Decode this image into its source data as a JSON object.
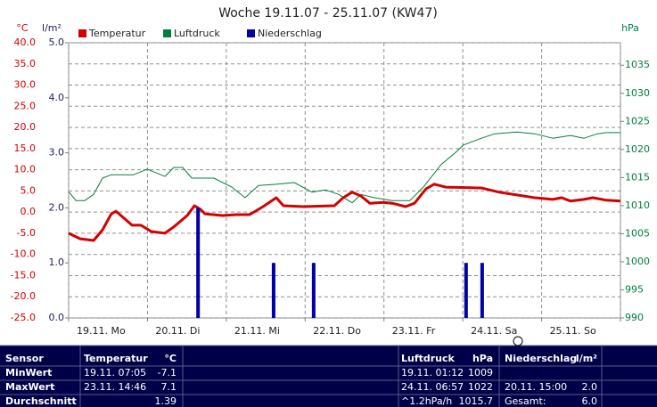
{
  "chart_data": {
    "type": "line",
    "title": "Woche 19.11.07 - 25.11.07 (KW47)",
    "y_label": "°C",
    "y3_label": "l/m²",
    "y2_label": "hPa",
    "xlim": [
      0,
      168
    ],
    "xticks": [
      {
        "value": 0,
        "label": "19.11. Mo"
      },
      {
        "value": 24,
        "label": "20.11. Di"
      },
      {
        "value": 48,
        "label": "21.11. Mi"
      },
      {
        "value": 72,
        "label": "22.11. Do"
      },
      {
        "value": 96,
        "label": "23.11. Fr"
      },
      {
        "value": 120,
        "label": "24.11. Sa"
      },
      {
        "value": 144,
        "label": "25.11. So"
      },
      {
        "value": 168,
        "label": null
      }
    ],
    "ylim": [
      -25,
      40
    ],
    "yticks": [
      {
        "value": 40,
        "label": "40.0"
      },
      {
        "value": 35,
        "label": "35.0"
      },
      {
        "value": 30,
        "label": "30.0"
      },
      {
        "value": 25,
        "label": "25.0"
      },
      {
        "value": 20,
        "label": "20.0"
      },
      {
        "value": 15,
        "label": "15.0"
      },
      {
        "value": 10,
        "label": "10.0"
      },
      {
        "value": 5,
        "label": "5.0"
      },
      {
        "value": 0,
        "label": "0.0"
      },
      {
        "value": -5,
        "label": "-5.0"
      },
      {
        "value": -10,
        "label": "-10.0"
      },
      {
        "value": -15,
        "label": "-15.0"
      },
      {
        "value": -20,
        "label": "-20.0"
      },
      {
        "value": -25,
        "label": "-25.0"
      }
    ],
    "y3lim": [
      0,
      5
    ],
    "y3ticks": [
      {
        "value": 0,
        "label": "0.0"
      },
      {
        "value": 1,
        "label": "1.0"
      },
      {
        "value": 2,
        "label": "2.0"
      },
      {
        "value": 3,
        "label": "3.0"
      },
      {
        "value": 4,
        "label": "4.0"
      },
      {
        "value": 5,
        "label": "5.0"
      }
    ],
    "y2lim": [
      990,
      1039
    ],
    "y2ticks": [
      990,
      995,
      1000,
      1005,
      1010,
      1015,
      1020,
      1025,
      1030,
      1035
    ],
    "grid": true,
    "series": [
      {
        "name": "Temperatur",
        "color": "#d40000",
        "x": [
          0,
          3.5,
          7.6,
          10.3,
          13,
          14.4,
          17.1,
          19.3,
          22,
          25.2,
          29.3,
          32,
          36.1,
          38.3,
          40.2,
          41.5,
          46.9,
          51,
          55.1,
          59.2,
          63.2,
          65.4,
          71.4,
          80.9,
          83.6,
          86.3,
          89,
          91.7,
          95.8,
          98.5,
          102.6,
          105.3,
          108.8,
          111.3,
          114.8,
          125.7,
          131.1,
          141.9,
          147.4,
          150.1,
          152.8,
          156.9,
          159.6,
          163.7,
          168
        ],
        "values": [
          -5.0,
          -6.3,
          -6.7,
          -4.2,
          -0.4,
          0.2,
          -1.6,
          -3.1,
          -3.1,
          -4.6,
          -5.0,
          -3.5,
          -0.8,
          1.5,
          0.6,
          -0.4,
          -0.8,
          -0.6,
          -0.6,
          1.3,
          3.4,
          1.5,
          1.3,
          1.5,
          3.4,
          4.7,
          3.8,
          2.1,
          2.3,
          2.1,
          1.3,
          2.1,
          5.5,
          6.6,
          5.9,
          5.7,
          4.7,
          3.4,
          3.0,
          3.4,
          2.6,
          3.0,
          3.4,
          2.8,
          2.6
        ]
      },
      {
        "name": "Luftdruck",
        "color": "#008040",
        "axis": "y2",
        "x": [
          0,
          2.2,
          4.9,
          7.6,
          10.3,
          13,
          19.8,
          23.9,
          29.3,
          32,
          34.7,
          37.5,
          44.2,
          49.7,
          53.7,
          57.8,
          63.2,
          68.7,
          74.1,
          78.2,
          82.2,
          86.3,
          89,
          93.1,
          98.5,
          103.9,
          108,
          113.4,
          117.5,
          120.2,
          125.7,
          129.7,
          136.5,
          141.9,
          147.4,
          152.8,
          156.9,
          161,
          163.7,
          168
        ],
        "values": [
          1012.5,
          1010.9,
          1010.9,
          1012,
          1014.9,
          1015.5,
          1015.5,
          1016.5,
          1015.2,
          1016.8,
          1016.8,
          1014.9,
          1014.9,
          1013.3,
          1011.4,
          1013.6,
          1013.8,
          1014.1,
          1012.4,
          1012.8,
          1012,
          1010.5,
          1012,
          1011.4,
          1010.9,
          1010.9,
          1013.3,
          1017.3,
          1019.3,
          1020.8,
          1022,
          1022.8,
          1023.1,
          1022.8,
          1022,
          1022.5,
          1022,
          1022.8,
          1023,
          1023
        ]
      },
      {
        "name": "Niederschlag",
        "color": "#0000a8",
        "axis": "y3",
        "type": "bar",
        "x": [
          39.4,
          62.4,
          74.6,
          121,
          125.9
        ],
        "values": [
          2.0,
          1.0,
          1.0,
          1.0,
          1.0
        ]
      }
    ]
  },
  "table": {
    "header": [
      "Sensor",
      "Temperatur",
      "°C",
      "Luftdruck",
      "hPa",
      "Niederschlag",
      "l/m²"
    ],
    "rows": [
      [
        "MinWert",
        "19.11.  07:05",
        "-7.1",
        "19.11.  01:12",
        "1009",
        null,
        null
      ],
      [
        "MaxWert",
        "23.11.  14:46",
        "7.1",
        "24.11.  06:57",
        "1022",
        "20.11.  15:00",
        "2.0"
      ],
      [
        "Durchschnitt",
        null,
        "1.39",
        "^1.2hPa/h",
        "1015.7",
        "Gesamt:",
        "6.0"
      ]
    ]
  }
}
